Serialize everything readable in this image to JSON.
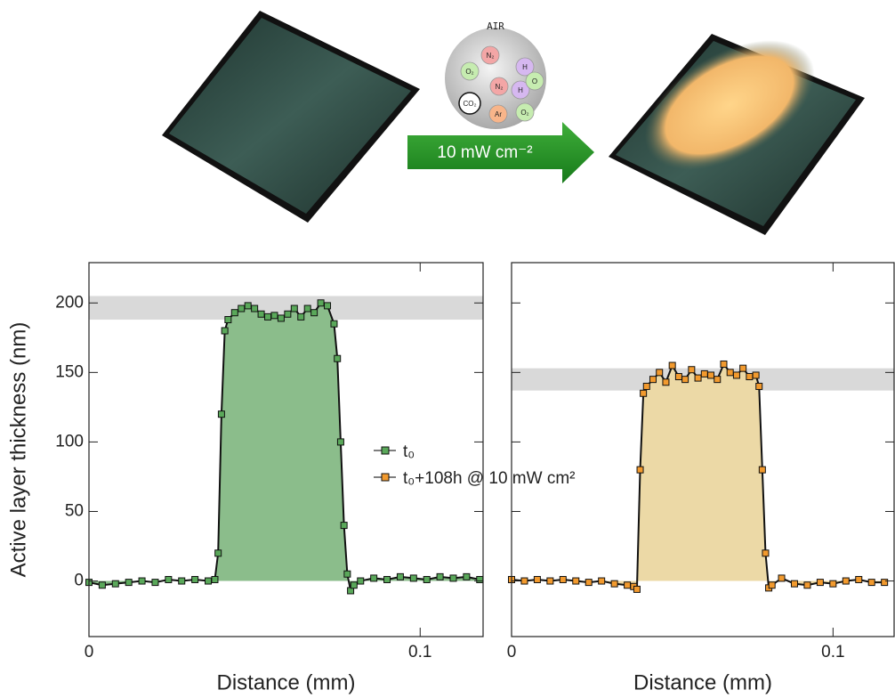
{
  "illustration": {
    "air": "AIR",
    "arrow_label": "10 mW cm⁻²",
    "molecules": [
      "N₂",
      "O₂",
      "H",
      "N₂",
      "H",
      "O",
      "CO₂",
      "Ar",
      "O₂"
    ]
  },
  "chart_data": [
    {
      "type": "line",
      "x_label": "Distance (mm)",
      "y_label": "Active layer thickness (nm)",
      "xlim": [
        0,
        0.119
      ],
      "ylim": [
        -40,
        229
      ],
      "xticks": [
        0,
        0.1
      ],
      "yticks": [
        0,
        50,
        100,
        150,
        200
      ],
      "ytick_labels": true,
      "band": [
        188,
        205
      ],
      "series": [
        {
          "name": "t₀",
          "color": "#5aa85a",
          "fill_color": "#8bbd8b",
          "x": [
            0,
            0.004,
            0.008,
            0.012,
            0.016,
            0.02,
            0.024,
            0.028,
            0.032,
            0.036,
            0.038,
            0.039,
            0.04,
            0.041,
            0.042,
            0.044,
            0.046,
            0.048,
            0.05,
            0.052,
            0.054,
            0.056,
            0.058,
            0.06,
            0.062,
            0.064,
            0.066,
            0.068,
            0.07,
            0.072,
            0.074,
            0.075,
            0.076,
            0.077,
            0.078,
            0.079,
            0.08,
            0.082,
            0.086,
            0.09,
            0.094,
            0.098,
            0.102,
            0.106,
            0.11,
            0.114,
            0.118
          ],
          "values": [
            -1,
            -3,
            -2,
            -1,
            0,
            -1,
            1,
            0,
            1,
            0,
            1,
            20,
            120,
            180,
            188,
            193,
            196,
            198,
            196,
            192,
            190,
            191,
            189,
            192,
            196,
            190,
            196,
            193,
            200,
            198,
            185,
            160,
            100,
            40,
            5,
            -7,
            -3,
            0,
            2,
            1,
            3,
            2,
            1,
            3,
            2,
            3,
            1
          ]
        }
      ]
    },
    {
      "type": "line",
      "x_label": "Distance (mm)",
      "xlim": [
        0,
        0.119
      ],
      "ylim": [
        -40,
        229
      ],
      "xticks": [
        0,
        0.1
      ],
      "yticks": [
        0,
        50,
        100,
        150,
        200
      ],
      "ytick_labels": false,
      "band": [
        137,
        153
      ],
      "series": [
        {
          "name": "t₀+108h @ 10 mW cm²",
          "color": "#f29a2e",
          "fill_color": "#ecd9a6",
          "x": [
            0,
            0.004,
            0.008,
            0.012,
            0.016,
            0.02,
            0.024,
            0.028,
            0.032,
            0.036,
            0.038,
            0.039,
            0.04,
            0.041,
            0.042,
            0.044,
            0.046,
            0.048,
            0.05,
            0.052,
            0.054,
            0.056,
            0.058,
            0.06,
            0.062,
            0.064,
            0.066,
            0.068,
            0.07,
            0.072,
            0.074,
            0.076,
            0.077,
            0.078,
            0.079,
            0.08,
            0.081,
            0.084,
            0.088,
            0.092,
            0.096,
            0.1,
            0.104,
            0.108,
            0.112,
            0.116
          ],
          "values": [
            1,
            0,
            1,
            0,
            1,
            0,
            -1,
            0,
            -2,
            -3,
            -4,
            -6,
            80,
            135,
            140,
            145,
            150,
            143,
            155,
            147,
            145,
            152,
            146,
            149,
            148,
            145,
            156,
            150,
            148,
            153,
            147,
            148,
            140,
            80,
            20,
            -5,
            -3,
            2,
            -2,
            -3,
            -1,
            -2,
            0,
            1,
            -1,
            -1
          ]
        }
      ]
    }
  ]
}
